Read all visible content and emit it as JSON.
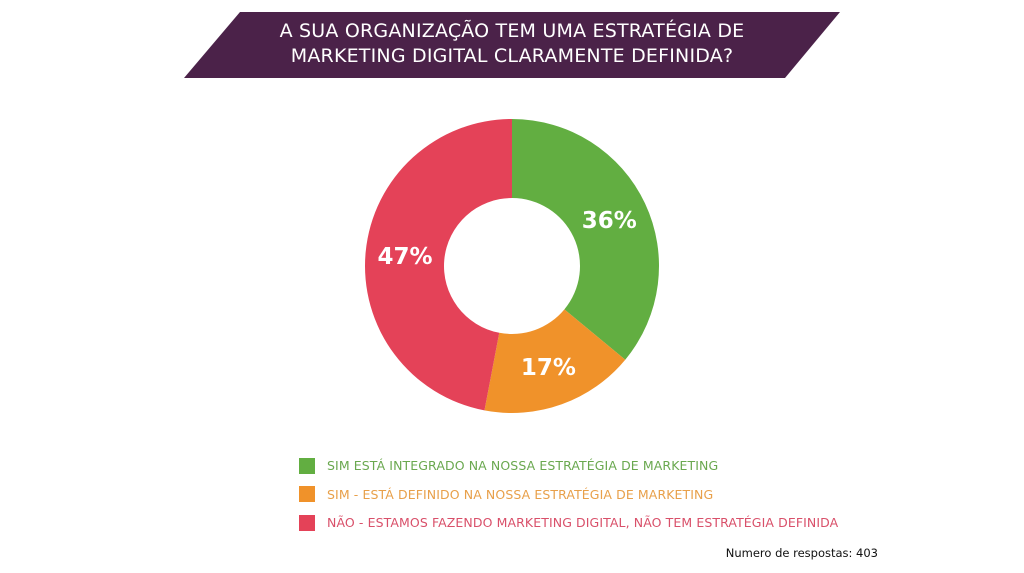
{
  "chart_data": {
    "type": "pie",
    "donut": true,
    "title": "A SUA ORGANIZAÇÃO TEM UMA ESTRATÉGIA DE MARKETING DIGITAL CLARAMENTE DEFINIDA?",
    "title_lines": [
      "A SUA ORGANIZAÇÃO TEM UMA ESTRATÉGIA DE",
      "MARKETING DIGITAL CLARAMENTE DEFINIDA?"
    ],
    "slices": [
      {
        "label": "SIM ESTÁ INTEGRADO NA NOSSA ESTRATÉGIA DE MARKETING",
        "value": 36,
        "display": "36%",
        "color": "#62ae41"
      },
      {
        "label": "SIM - ESTÁ DEFINIDO NA NOSSA ESTRATÉGIA DE MARKETING",
        "value": 17,
        "display": "17%",
        "color": "#f0922a"
      },
      {
        "label": "NÃO - ESTAMOS FAZENDO MARKETING DIGITAL, NÃO TEM ESTRATÉGIA DEFINIDA",
        "value": 47,
        "display": "47%",
        "color": "#e44258"
      }
    ],
    "legend_position": "bottom",
    "note": "Numero de respostas: 403"
  },
  "colors": {
    "banner": "#4b2249",
    "legend_text": [
      "#6aa84f",
      "#e8a04a",
      "#d9506a"
    ]
  }
}
